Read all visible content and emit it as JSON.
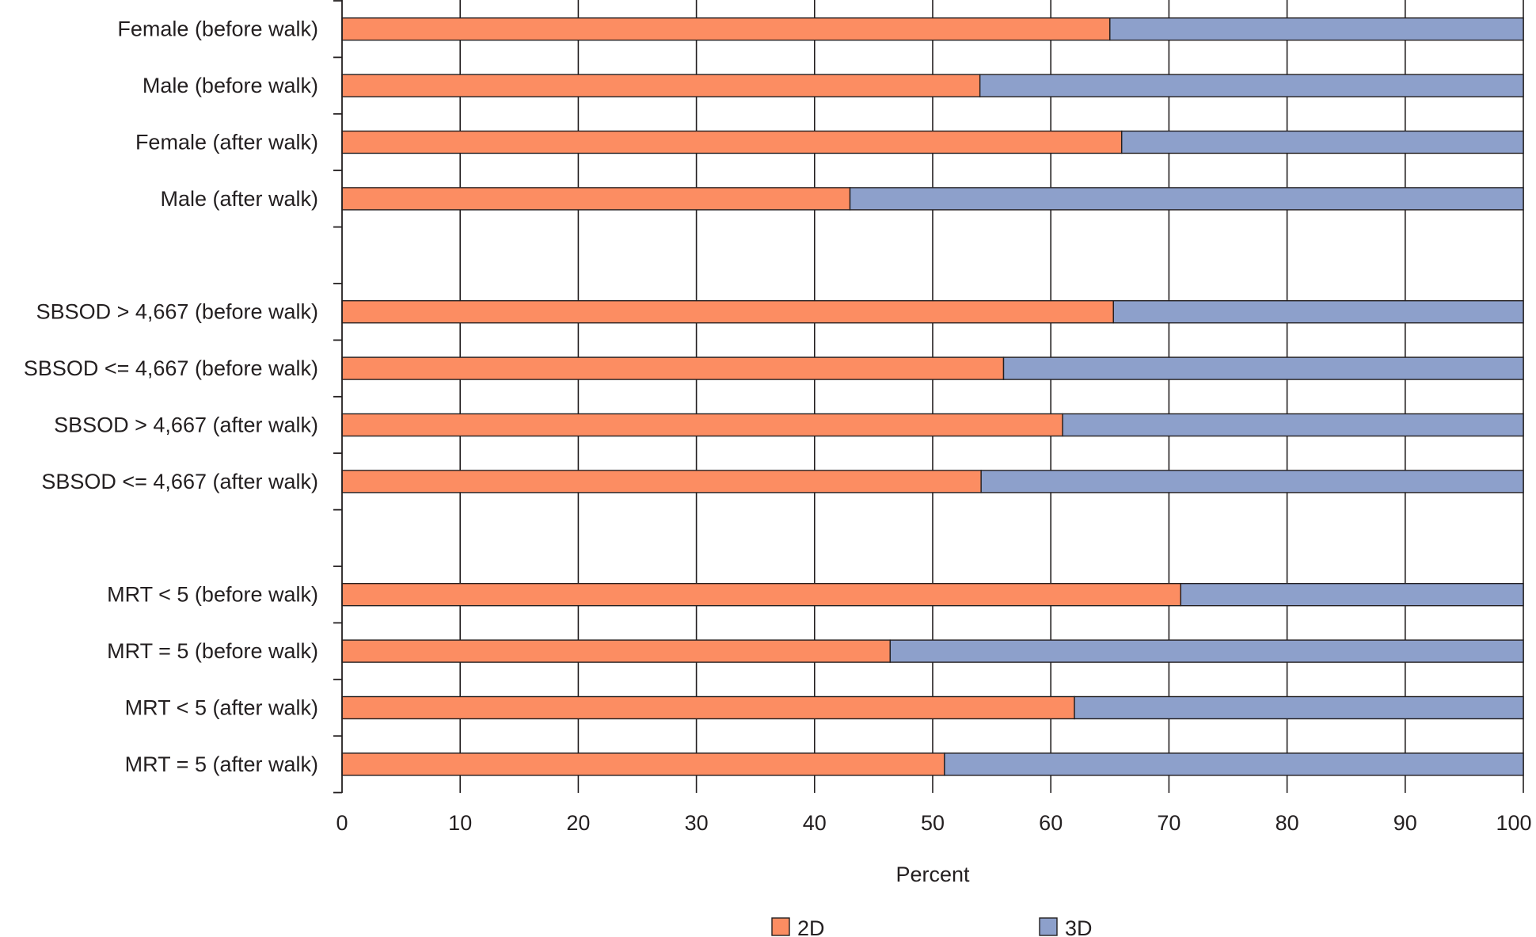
{
  "chart_data": {
    "type": "bar",
    "orientation": "horizontal",
    "stacked": true,
    "percent": true,
    "title": "",
    "xlabel": "Percent",
    "ylabel": "",
    "xlim": [
      0,
      100
    ],
    "xticks": [
      0,
      10,
      20,
      30,
      40,
      50,
      60,
      70,
      80,
      90,
      100
    ],
    "grid": "vertical",
    "legend_position": "bottom",
    "categories": [
      "Female (before walk)",
      "Male (before walk)",
      "Female (after walk)",
      "Male (after walk)",
      "",
      "SBSOD > 4,667 (before walk)",
      "SBSOD <= 4,667 (before walk)",
      "SBSOD > 4,667 (after walk)",
      "SBSOD <= 4,667 (after  walk)",
      "",
      "MRT < 5 (before  walk)",
      "MRT = 5 (before walk)",
      "MRT < 5 (after  walk)",
      "MRT = 5 (after walk)"
    ],
    "series": [
      {
        "name": "2D",
        "color": "#fc8d62",
        "values": [
          65,
          54,
          66,
          43,
          null,
          65.3,
          56,
          61,
          54.1,
          null,
          71,
          46.4,
          62,
          51
        ]
      },
      {
        "name": "3D",
        "color": "#8da0cb",
        "values": [
          35,
          46,
          34,
          57,
          null,
          34.7,
          44,
          39,
          45.9,
          null,
          29,
          53.6,
          38,
          49
        ]
      }
    ]
  }
}
